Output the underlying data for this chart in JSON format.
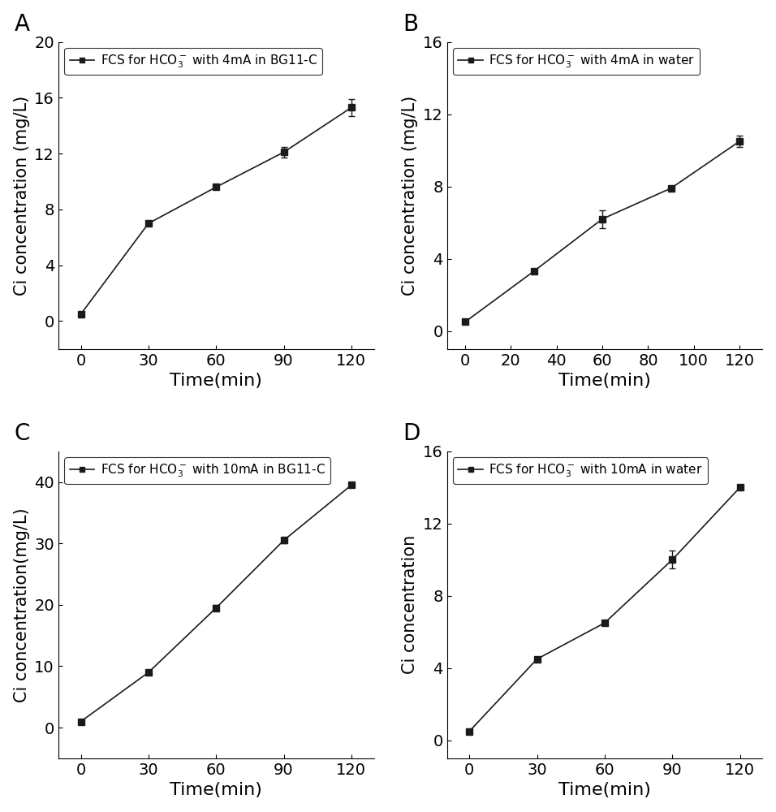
{
  "panels": [
    {
      "label": "A",
      "legend_text": "FCS for HCO$_3^-$ with 4mA in BG11-C",
      "x": [
        0,
        30,
        60,
        90,
        120
      ],
      "y": [
        0.5,
        7.0,
        9.6,
        12.1,
        15.3
      ],
      "yerr": [
        0.0,
        0.0,
        0.0,
        0.4,
        0.6
      ],
      "yerr_mask": [
        false,
        false,
        false,
        true,
        true
      ],
      "ylim": [
        -2,
        20
      ],
      "yticks": [
        0,
        4,
        8,
        12,
        16,
        20
      ],
      "ylabel": "Ci concentration (mg/L)",
      "xlabel": "Time(min)",
      "xticks": [
        0,
        30,
        60,
        90,
        120
      ],
      "xlim": [
        -10,
        130
      ]
    },
    {
      "label": "B",
      "legend_text": "FCS for HCO$_3^-$ with 4mA in water",
      "x": [
        0,
        30,
        60,
        90,
        120
      ],
      "y": [
        0.5,
        3.3,
        6.2,
        7.9,
        10.5
      ],
      "yerr": [
        0.0,
        0.0,
        0.5,
        0.0,
        0.3
      ],
      "yerr_mask": [
        false,
        false,
        true,
        false,
        true
      ],
      "ylim": [
        -1,
        16
      ],
      "yticks": [
        0,
        4,
        8,
        12,
        16
      ],
      "ylabel": "Ci concentration (mg/L)",
      "xlabel": "Time(min)",
      "xticks": [
        0,
        20,
        40,
        60,
        80,
        100,
        120
      ],
      "xlim": [
        -8,
        130
      ]
    },
    {
      "label": "C",
      "legend_text": "FCS for HCO$_3^-$ with 10mA in BG11-C",
      "x": [
        0,
        30,
        60,
        90,
        120
      ],
      "y": [
        1.0,
        9.0,
        19.5,
        30.5,
        39.5
      ],
      "yerr": [
        0.0,
        0.3,
        0.5,
        0.5,
        0.0
      ],
      "yerr_mask": [
        false,
        false,
        true,
        true,
        false
      ],
      "ylim": [
        -5,
        45
      ],
      "yticks": [
        0,
        10,
        20,
        30,
        40
      ],
      "ylabel": "Ci concentration(mg/L)",
      "xlabel": "Time(min)",
      "xticks": [
        0,
        30,
        60,
        90,
        120
      ],
      "xlim": [
        -10,
        130
      ]
    },
    {
      "label": "D",
      "legend_text": "FCS for HCO$_3^-$ with 10mA in water",
      "x": [
        0,
        30,
        60,
        90,
        120
      ],
      "y": [
        0.5,
        4.5,
        6.5,
        10.0,
        14.0
      ],
      "yerr": [
        0.0,
        0.0,
        0.0,
        0.5,
        0.0
      ],
      "yerr_mask": [
        false,
        false,
        false,
        true,
        false
      ],
      "ylim": [
        -1,
        16
      ],
      "yticks": [
        0,
        4,
        8,
        12,
        16
      ],
      "ylabel": "Ci concentration",
      "xlabel": "Time(min)",
      "xticks": [
        0,
        30,
        60,
        90,
        120
      ],
      "xlim": [
        -10,
        130
      ]
    }
  ],
  "line_color": "#1a1a1a",
  "marker": "s",
  "markersize": 6,
  "capsize": 3,
  "linewidth": 1.2,
  "panel_label_fontsize": 20,
  "tick_fontsize": 14,
  "legend_fontsize": 11,
  "ylabel_fontsize": 15,
  "xlabel_fontsize": 16
}
